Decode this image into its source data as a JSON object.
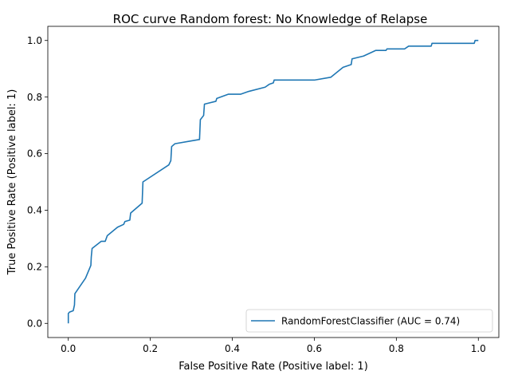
{
  "chart_data": {
    "type": "line",
    "title": "ROC curve Random forest: No Knowledge of Relapse",
    "xlabel": "False Positive Rate (Positive label: 1)",
    "ylabel": "True Positive Rate (Positive label: 1)",
    "xlim": [
      -0.05,
      1.05
    ],
    "ylim": [
      -0.05,
      1.05
    ],
    "xticks": [
      0.0,
      0.2,
      0.4,
      0.6,
      0.8,
      1.0
    ],
    "yticks": [
      0.0,
      0.2,
      0.4,
      0.6,
      0.8,
      1.0
    ],
    "xtick_labels": [
      "0.0",
      "0.2",
      "0.4",
      "0.6",
      "0.8",
      "1.0"
    ],
    "ytick_labels": [
      "0.0",
      "0.2",
      "0.4",
      "0.6",
      "0.8",
      "1.0"
    ],
    "grid": false,
    "legend_position": "lower-right",
    "series": [
      {
        "name": "RandomForestClassifier (AUC = 0.74)",
        "color": "#1f77b4",
        "x": [
          0.0,
          0.0,
          0.003,
          0.012,
          0.015,
          0.016,
          0.042,
          0.055,
          0.056,
          0.058,
          0.08,
          0.09,
          0.095,
          0.12,
          0.135,
          0.138,
          0.15,
          0.152,
          0.18,
          0.182,
          0.245,
          0.25,
          0.252,
          0.26,
          0.3,
          0.32,
          0.322,
          0.33,
          0.332,
          0.36,
          0.362,
          0.39,
          0.42,
          0.44,
          0.48,
          0.49,
          0.5,
          0.502,
          0.6,
          0.64,
          0.67,
          0.69,
          0.692,
          0.72,
          0.75,
          0.775,
          0.777,
          0.82,
          0.83,
          0.885,
          0.887,
          0.99,
          0.992,
          1.0
        ],
        "y": [
          0.0,
          0.035,
          0.04,
          0.045,
          0.065,
          0.105,
          0.16,
          0.205,
          0.235,
          0.265,
          0.29,
          0.29,
          0.31,
          0.34,
          0.35,
          0.36,
          0.365,
          0.39,
          0.425,
          0.5,
          0.56,
          0.575,
          0.625,
          0.635,
          0.645,
          0.65,
          0.72,
          0.735,
          0.775,
          0.785,
          0.795,
          0.81,
          0.81,
          0.82,
          0.835,
          0.845,
          0.85,
          0.86,
          0.86,
          0.87,
          0.905,
          0.915,
          0.935,
          0.945,
          0.965,
          0.965,
          0.97,
          0.97,
          0.98,
          0.98,
          0.99,
          0.99,
          1.0,
          1.0
        ]
      }
    ]
  }
}
